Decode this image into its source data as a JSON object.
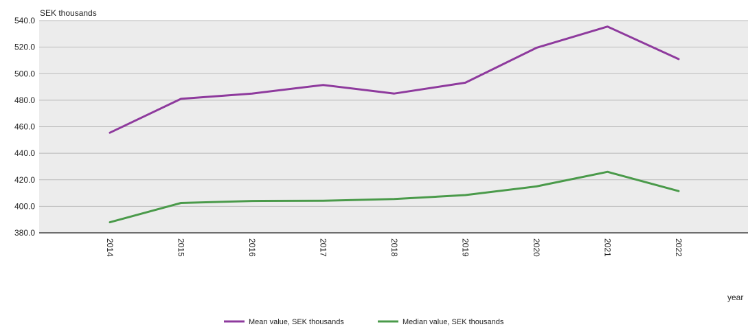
{
  "chart_data": {
    "type": "line",
    "ylabel": "SEK thousands",
    "xlabel": "year",
    "ylim": [
      380,
      540
    ],
    "yticks": [
      "540.0",
      "520.0",
      "500.0",
      "480.0",
      "460.0",
      "440.0",
      "420.0",
      "400.0",
      "380.0"
    ],
    "x": [
      "2014",
      "2015",
      "2016",
      "2017",
      "2018",
      "2019",
      "2020",
      "2021",
      "2022"
    ],
    "series": [
      {
        "name": "Mean value, SEK thousands",
        "color": "#8e3a9d",
        "values": [
          455.5,
          481,
          485,
          491.5,
          485,
          493.2,
          519.5,
          535.5,
          511
        ]
      },
      {
        "name": "Median value, SEK thousands",
        "color": "#4a9a4a",
        "values": [
          388,
          402.5,
          404,
          404.2,
          405.5,
          408.5,
          415,
          426,
          411.5
        ]
      }
    ],
    "grid": true,
    "plot_background": "#ececec",
    "legend_position": "bottom-center"
  }
}
